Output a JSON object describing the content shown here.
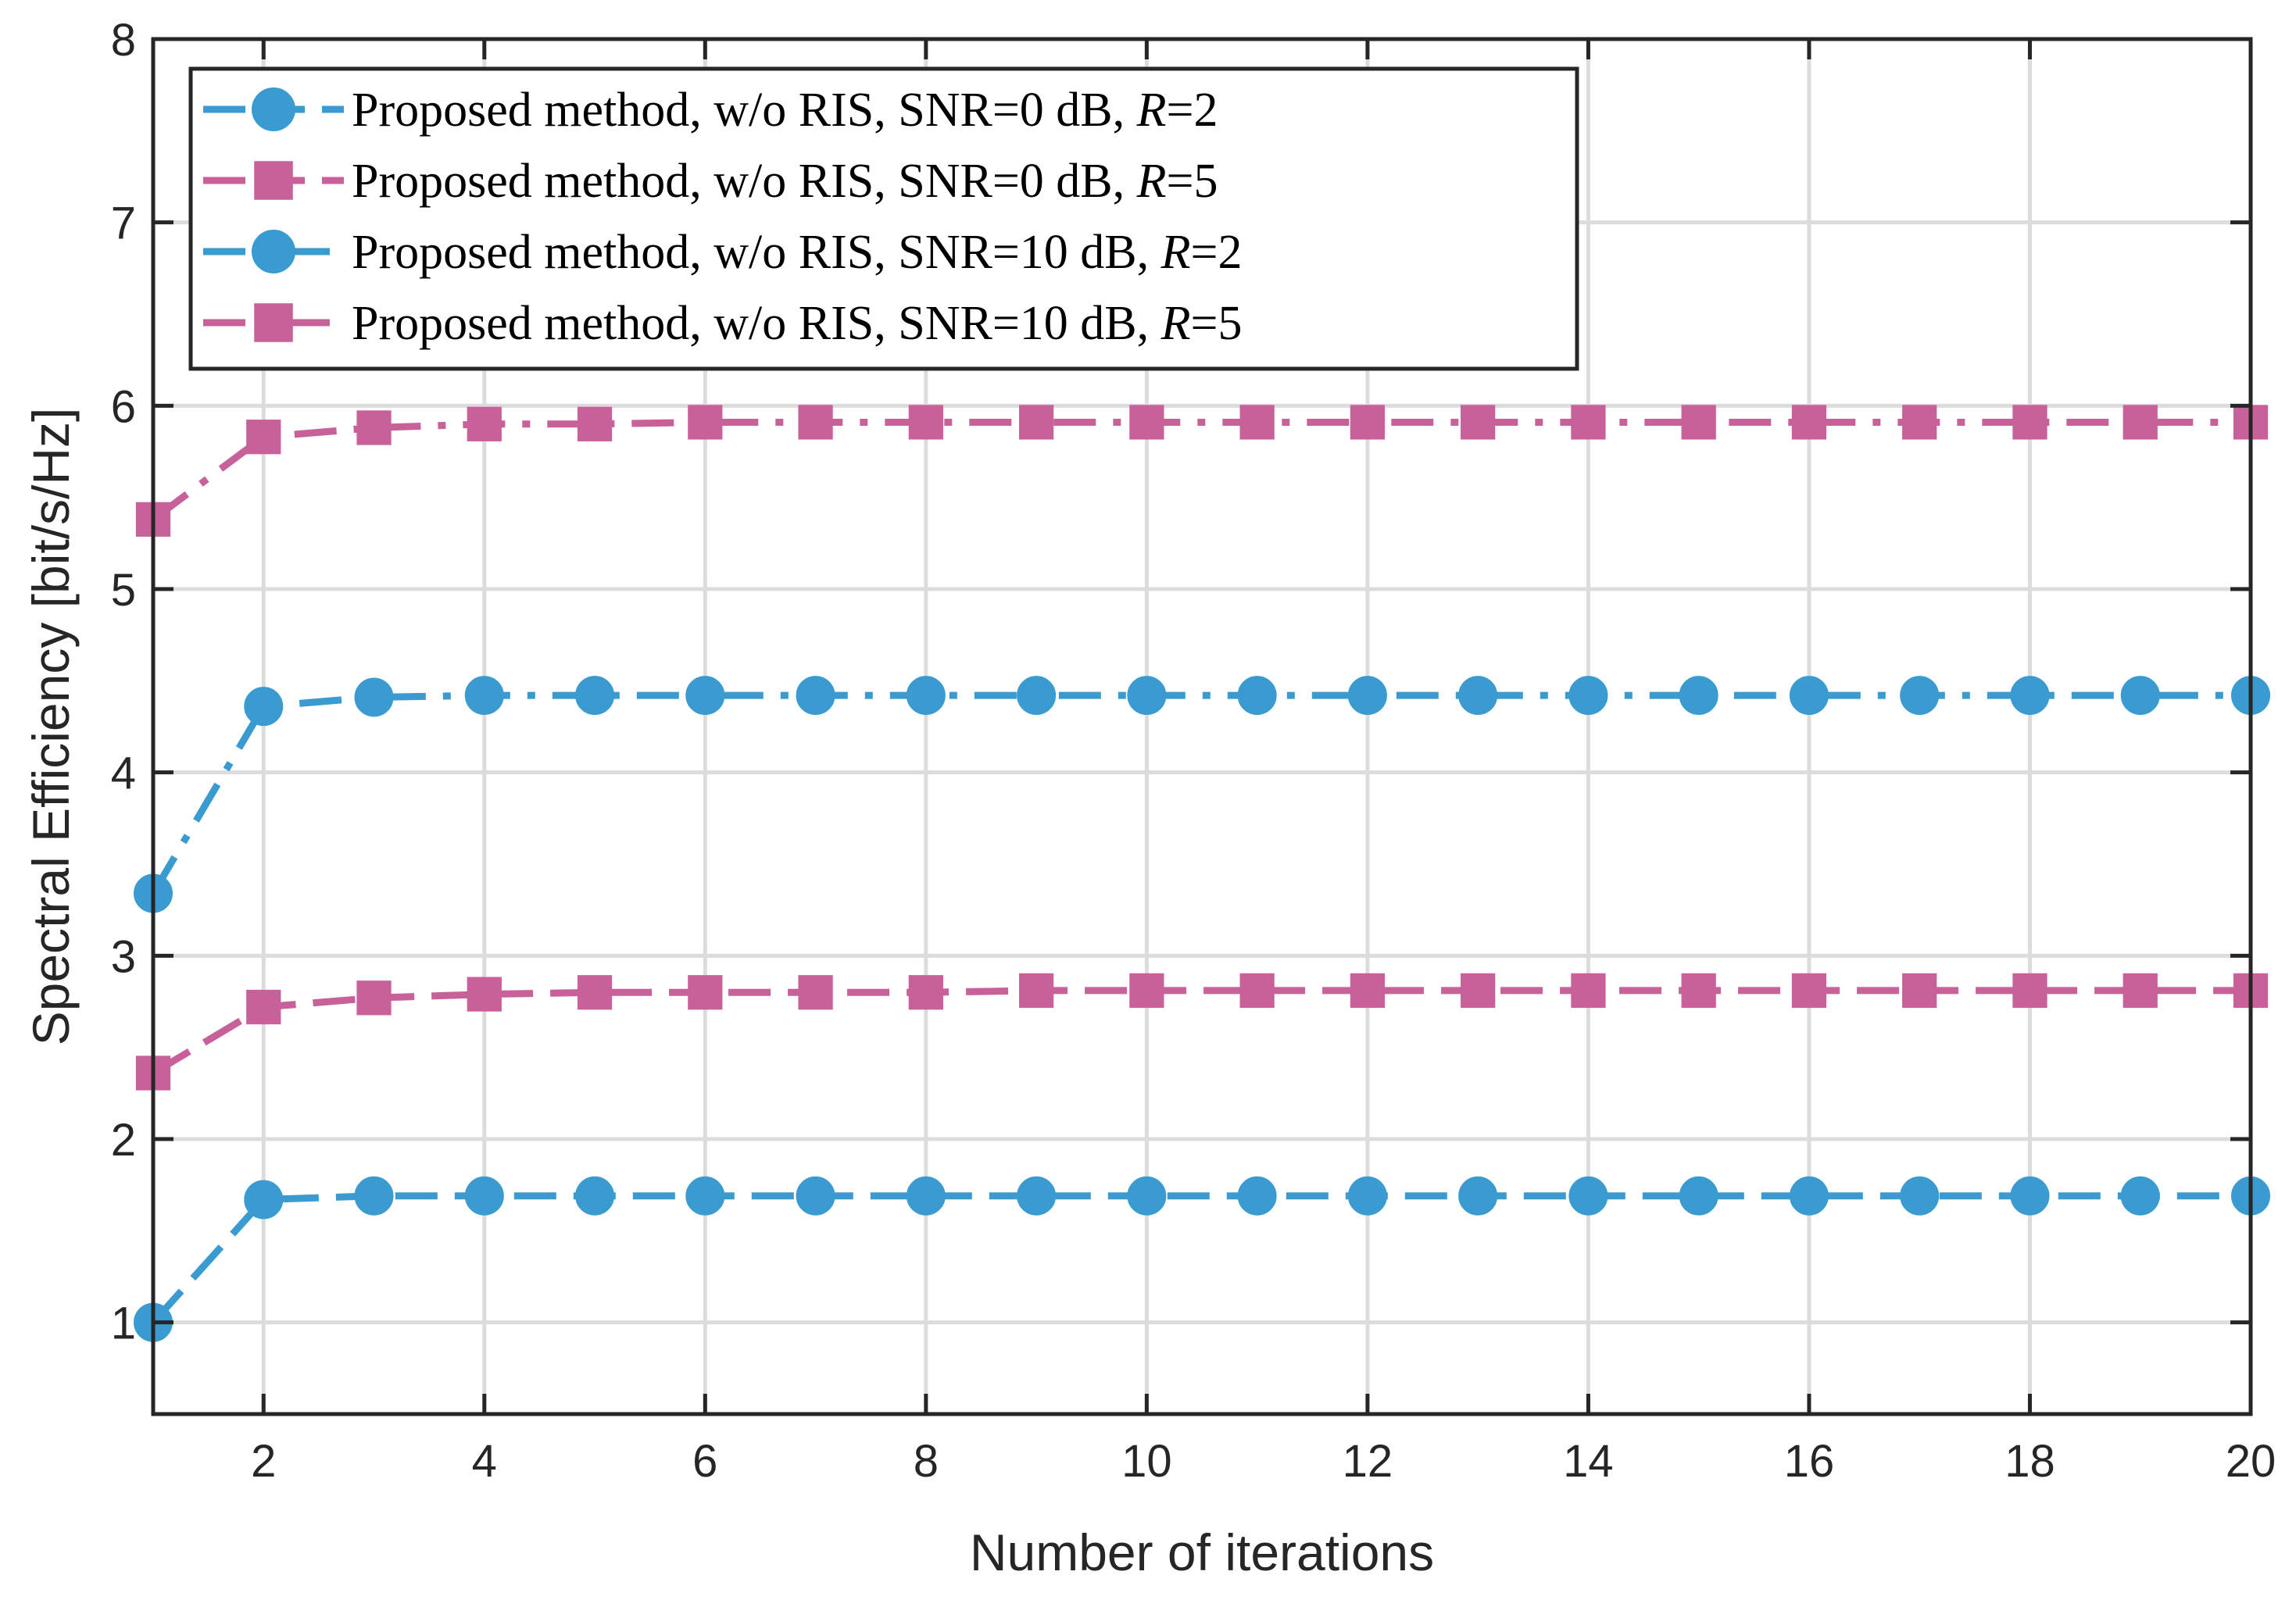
{
  "chart_data": {
    "type": "line",
    "title": "",
    "xlabel": "Number of iterations",
    "ylabel": "Spectral Efficiency [bit/s/Hz]",
    "xlim": [
      1,
      20
    ],
    "ylim": [
      0.5,
      8
    ],
    "xticks": [
      2,
      4,
      6,
      8,
      10,
      12,
      14,
      16,
      18,
      20
    ],
    "yticks": [
      1,
      2,
      3,
      4,
      5,
      6,
      7,
      8
    ],
    "grid": true,
    "legend_position": "top-left",
    "x": [
      1,
      2,
      3,
      4,
      5,
      6,
      7,
      8,
      9,
      10,
      11,
      12,
      13,
      14,
      15,
      16,
      17,
      18,
      19,
      20
    ],
    "series": [
      {
        "name": "Proposed method, w/o RIS, SNR=0 dB, R=2",
        "legend_prefix": "Proposed method, w/o RIS, SNR=0 dB, ",
        "legend_math": "R",
        "legend_suffix": "=2",
        "color": "#3a9bd0",
        "marker": "circle",
        "dash": "dashed",
        "values": [
          1.0,
          1.67,
          1.69,
          1.69,
          1.69,
          1.69,
          1.69,
          1.69,
          1.69,
          1.69,
          1.69,
          1.69,
          1.69,
          1.69,
          1.69,
          1.69,
          1.69,
          1.69,
          1.69,
          1.69
        ]
      },
      {
        "name": "Proposed method, w/o RIS, SNR=0 dB, R=5",
        "legend_prefix": "Proposed method, w/o RIS, SNR=0 dB, ",
        "legend_math": "R",
        "legend_suffix": "=5",
        "color": "#c8609a",
        "marker": "square",
        "dash": "dashed",
        "values": [
          2.36,
          2.72,
          2.77,
          2.79,
          2.8,
          2.8,
          2.8,
          2.8,
          2.81,
          2.81,
          2.81,
          2.81,
          2.81,
          2.81,
          2.81,
          2.81,
          2.81,
          2.81,
          2.81,
          2.81
        ]
      },
      {
        "name": "Proposed method, w/o RIS, SNR=10 dB, R=2",
        "legend_prefix": "Proposed method, w/o RIS, SNR=10 dB, ",
        "legend_math": "R",
        "legend_suffix": "=2",
        "color": "#3a9bd0",
        "marker": "circle",
        "dash": "dashdot",
        "values": [
          3.34,
          4.36,
          4.41,
          4.42,
          4.42,
          4.42,
          4.42,
          4.42,
          4.42,
          4.42,
          4.42,
          4.42,
          4.42,
          4.42,
          4.42,
          4.42,
          4.42,
          4.42,
          4.42,
          4.42
        ]
      },
      {
        "name": "Proposed method, w/o RIS, SNR=10 dB, R=5",
        "legend_prefix": "Proposed method, w/o RIS, SNR=10 dB, ",
        "legend_math": "R",
        "legend_suffix": "=5",
        "color": "#c8609a",
        "marker": "square",
        "dash": "dashdot",
        "values": [
          5.38,
          5.83,
          5.88,
          5.9,
          5.9,
          5.91,
          5.91,
          5.91,
          5.91,
          5.91,
          5.91,
          5.91,
          5.91,
          5.91,
          5.91,
          5.91,
          5.91,
          5.91,
          5.91,
          5.91
        ]
      }
    ]
  }
}
